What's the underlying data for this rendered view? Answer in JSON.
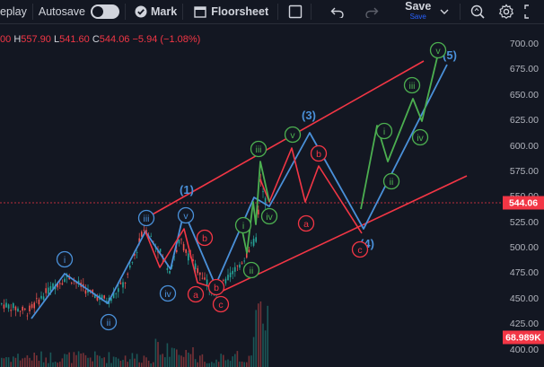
{
  "toolbar": {
    "replay_label": "eplay",
    "autosave_label": "Autosave",
    "mark_label": "Mark",
    "floorsheet_label": "Floorsheet",
    "save_label": "Save",
    "save_sub_label": "Save",
    "accent": "#2962ff"
  },
  "ohlc": {
    "open_tail": "00",
    "h_key": "H",
    "h_val": "557.90",
    "l_key": "L",
    "l_val": "541.60",
    "c_key": "C",
    "c_val": "544.06",
    "change": "−5.94 (−1.08%)"
  },
  "price_axis": {
    "ticks": [
      "700.00",
      "675.00",
      "650.00",
      "625.00",
      "600.00",
      "575.00",
      "550.00",
      "525.00",
      "500.00",
      "475.00",
      "450.00",
      "425.00",
      "400.00"
    ],
    "tick_values": [
      700,
      675,
      650,
      625,
      600,
      575,
      550,
      525,
      500,
      475,
      450,
      425,
      400
    ],
    "current_price": "544.06",
    "current_value": 544.06,
    "volume": "68.989K"
  },
  "colors": {
    "background": "#131722",
    "up": "#26a69a",
    "down": "#ef5350",
    "red_line": "#f23645",
    "blue_line": "#4a90d9",
    "green_line": "#4caf50"
  },
  "waves": {
    "blue_labels": [
      "i",
      "ii",
      "iii",
      "iv",
      "(1)",
      "(3)",
      "(4)",
      "(5)"
    ],
    "red_labels": [
      "a",
      "b",
      "c",
      "a",
      "b",
      "c"
    ],
    "green_labels": [
      "i",
      "ii",
      "iii",
      "iv",
      "v",
      "i",
      "ii",
      "iii",
      "iv",
      "v"
    ]
  }
}
